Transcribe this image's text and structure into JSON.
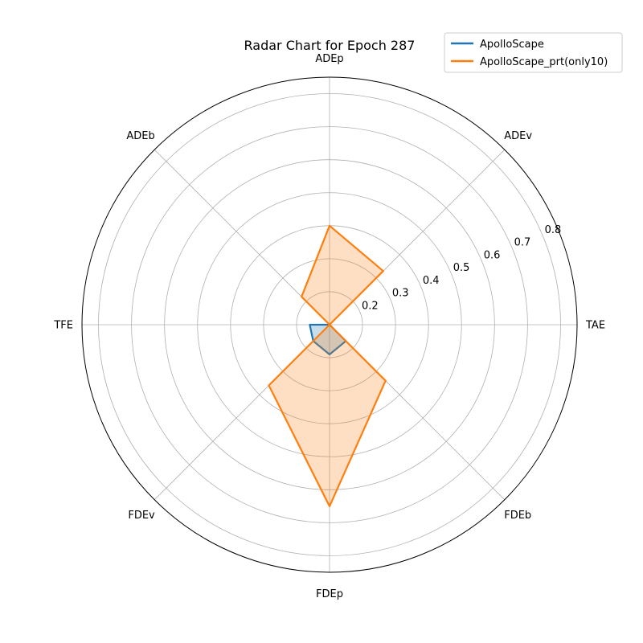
{
  "chart_data": {
    "type": "radar",
    "title": "Radar Chart for Epoch 287",
    "axes": [
      "ADEp",
      "ADEv",
      "TAE",
      "FDEb",
      "FDEp",
      "FDEv",
      "TFE",
      "ADEb"
    ],
    "radial_ticks": [
      "0.2",
      "0.3",
      "0.4",
      "0.5",
      "0.6",
      "0.7",
      "0.8"
    ],
    "radial_tick_values": [
      0.2,
      0.3,
      0.4,
      0.5,
      0.6,
      0.7,
      0.8
    ],
    "rlim": [
      0.1,
      0.85
    ],
    "grid": true,
    "legend_position": "top-right",
    "series": [
      {
        "name": "ApolloScape",
        "color": "#1f77b4",
        "values": [
          0.1,
          0.1,
          0.1,
          0.17,
          0.19,
          0.17,
          0.16,
          0.1
        ]
      },
      {
        "name": "ApolloScape_prt(only10)",
        "color": "#ff7f0e",
        "values": [
          0.4,
          0.33,
          0.1,
          0.34,
          0.65,
          0.36,
          0.1,
          0.22
        ]
      }
    ]
  }
}
